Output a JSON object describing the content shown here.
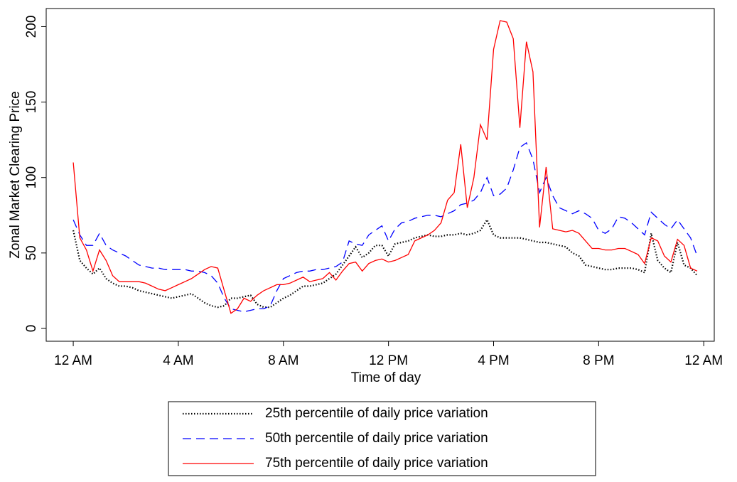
{
  "chart_data": {
    "type": "line",
    "x_label": "Time of day",
    "y_label": "Zonal Market Clearing Price",
    "x": [
      0,
      0.25,
      0.5,
      0.75,
      1,
      1.25,
      1.5,
      1.75,
      2,
      2.25,
      2.5,
      2.75,
      3,
      3.25,
      3.5,
      3.75,
      4,
      4.25,
      4.5,
      4.75,
      5,
      5.25,
      5.5,
      5.75,
      6,
      6.25,
      6.5,
      6.75,
      7,
      7.25,
      7.5,
      7.75,
      8,
      8.25,
      8.5,
      8.75,
      9,
      9.25,
      9.5,
      9.75,
      10,
      10.25,
      10.5,
      10.75,
      11,
      11.25,
      11.5,
      11.75,
      12,
      12.25,
      12.5,
      12.75,
      13,
      13.25,
      13.5,
      13.75,
      14,
      14.25,
      14.5,
      14.75,
      15,
      15.25,
      15.5,
      15.75,
      16,
      16.25,
      16.5,
      16.75,
      17,
      17.25,
      17.5,
      17.75,
      18,
      18.25,
      18.5,
      18.75,
      19,
      19.25,
      19.5,
      19.75,
      20,
      20.25,
      20.5,
      20.75,
      21,
      21.25,
      21.5,
      21.75,
      22,
      22.25,
      22.5,
      22.75,
      23,
      23.25,
      23.5,
      23.75
    ],
    "xlim": [
      -1.03,
      24.4
    ],
    "xticks": [
      {
        "value": 0,
        "label": "12 AM"
      },
      {
        "value": 4,
        "label": "4 AM"
      },
      {
        "value": 8,
        "label": "8 AM"
      },
      {
        "value": 12,
        "label": "12 PM"
      },
      {
        "value": 16,
        "label": "4 PM"
      },
      {
        "value": 20,
        "label": "8 PM"
      },
      {
        "value": 24,
        "label": "12 AM"
      }
    ],
    "ylim": [
      -8.5,
      212
    ],
    "yticks": [
      0,
      50,
      100,
      150,
      200
    ],
    "series": [
      {
        "name": "25th percentile of daily price variation",
        "color": "#000000",
        "linestyle": "dotted",
        "values": [
          65,
          45,
          40,
          36,
          40,
          33,
          30,
          28,
          28,
          27,
          25,
          24,
          23,
          22,
          21,
          20,
          21,
          22,
          23,
          20,
          17,
          15,
          14,
          15,
          20,
          20,
          21,
          22,
          16,
          14,
          14,
          17,
          20,
          22,
          25,
          28,
          28,
          29,
          30,
          33,
          36,
          42,
          48,
          54,
          47,
          50,
          55,
          55,
          48,
          56,
          57,
          58,
          60,
          61,
          62,
          61,
          61,
          62,
          62,
          63,
          62,
          63,
          65,
          72,
          62,
          60,
          60,
          60,
          60,
          59,
          58,
          57,
          57,
          56,
          55,
          54,
          50,
          48,
          42,
          41,
          40,
          39,
          39,
          40,
          40,
          40,
          39,
          37,
          63,
          45,
          40,
          37,
          57,
          42,
          40,
          35
        ]
      },
      {
        "name": "50th percentile of daily price variation",
        "color": "#0000ff",
        "linestyle": "dashed",
        "values": [
          72,
          62,
          55,
          55,
          63,
          55,
          52,
          50,
          48,
          45,
          42,
          41,
          40,
          40,
          39,
          39,
          39,
          39,
          38,
          38,
          37,
          35,
          30,
          20,
          13,
          12,
          11,
          12,
          13,
          13,
          15,
          25,
          33,
          35,
          37,
          38,
          38,
          39,
          39,
          40,
          41,
          44,
          58,
          56,
          55,
          62,
          65,
          68,
          58,
          66,
          70,
          71,
          73,
          74,
          75,
          75,
          74,
          76,
          78,
          82,
          83,
          85,
          90,
          100,
          88,
          89,
          93,
          105,
          120,
          123,
          112,
          90,
          100,
          88,
          80,
          78,
          76,
          78,
          76,
          73,
          65,
          63,
          66,
          74,
          73,
          70,
          66,
          62,
          77,
          73,
          69,
          66,
          72,
          66,
          60,
          48
        ]
      },
      {
        "name": "75th percentile of daily price variation",
        "color": "#ff0000",
        "linestyle": "solid",
        "values": [
          110,
          60,
          52,
          38,
          52,
          45,
          35,
          31,
          31,
          31,
          31,
          30,
          28,
          26,
          25,
          27,
          29,
          31,
          33,
          36,
          39,
          41,
          40,
          25,
          10,
          13,
          20,
          18,
          22,
          25,
          27,
          29,
          29,
          30,
          32,
          34,
          31,
          32,
          33,
          37,
          32,
          38,
          43,
          44,
          38,
          43,
          45,
          46,
          44,
          45,
          47,
          49,
          58,
          60,
          62,
          65,
          70,
          85,
          90,
          122,
          80,
          100,
          135,
          125,
          185,
          204,
          203,
          192,
          133,
          190,
          170,
          67,
          107,
          66,
          65,
          64,
          65,
          63,
          58,
          53,
          53,
          52,
          52,
          53,
          53,
          51,
          49,
          43,
          60,
          58,
          48,
          44,
          59,
          55,
          40,
          38
        ]
      }
    ]
  }
}
